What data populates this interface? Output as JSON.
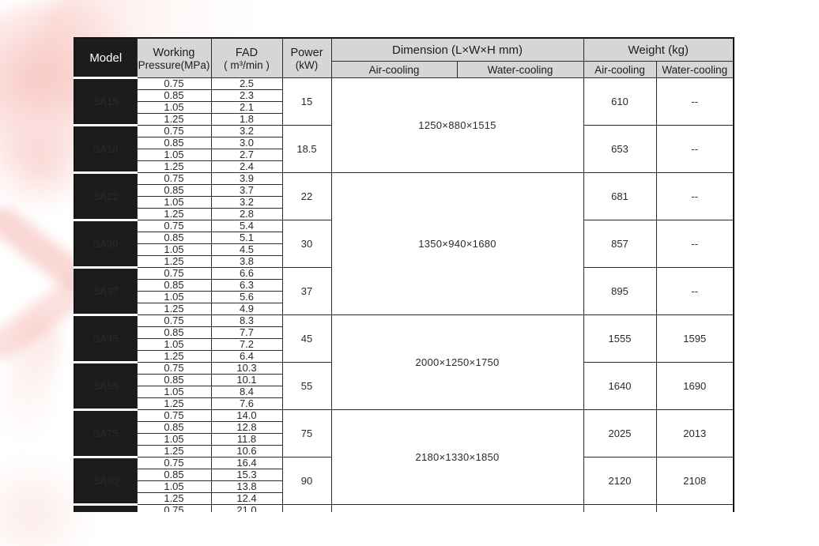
{
  "colors": {
    "header_bg": "#d6d6d6",
    "model_cell_bg": "#1c1c1c",
    "grid_line": "#2c2c2c",
    "pink_accent": "#f4b0a9",
    "page_bg": "#ffffff"
  },
  "table": {
    "header": {
      "model": "Model",
      "working_line1": "Working",
      "working_line2": "Pressure(MPa)",
      "fad_line1": "FAD",
      "fad_line2": "( m³/min )",
      "power_line1": "Power",
      "power_line2": "(kW)",
      "dimension": "Dimension  (L×W×H mm)",
      "weight": "Weight  (kg)",
      "air_cooling": "Air-cooling",
      "water_cooling": "Water-cooling"
    },
    "groups": [
      {
        "dimension": "1250×880×1515",
        "models": [
          {
            "name": "SA15",
            "power": "15",
            "weight_air": "610",
            "weight_water": "--",
            "rows": [
              [
                "0.75",
                "2.5"
              ],
              [
                "0.85",
                "2.3"
              ],
              [
                "1.05",
                "2.1"
              ],
              [
                "1.25",
                "1.8"
              ]
            ]
          },
          {
            "name": "SA18",
            "power": "18.5",
            "weight_air": "653",
            "weight_water": "--",
            "rows": [
              [
                "0.75",
                "3.2"
              ],
              [
                "0.85",
                "3.0"
              ],
              [
                "1.05",
                "2.7"
              ],
              [
                "1.25",
                "2.4"
              ]
            ]
          }
        ]
      },
      {
        "dimension": "1350×940×1680",
        "models": [
          {
            "name": "SA22",
            "power": "22",
            "weight_air": "681",
            "weight_water": "--",
            "rows": [
              [
                "0.75",
                "3.9"
              ],
              [
                "0.85",
                "3.7"
              ],
              [
                "1.05",
                "3.2"
              ],
              [
                "1.25",
                "2.8"
              ]
            ]
          },
          {
            "name": "SA30",
            "power": "30",
            "weight_air": "857",
            "weight_water": "--",
            "rows": [
              [
                "0.75",
                "5.4"
              ],
              [
                "0.85",
                "5.1"
              ],
              [
                "1.05",
                "4.5"
              ],
              [
                "1.25",
                "3.8"
              ]
            ]
          },
          {
            "name": "SA37",
            "power": "37",
            "weight_air": "895",
            "weight_water": "--",
            "rows": [
              [
                "0.75",
                "6.6"
              ],
              [
                "0.85",
                "6.3"
              ],
              [
                "1.05",
                "5.6"
              ],
              [
                "1.25",
                "4.9"
              ]
            ]
          }
        ]
      },
      {
        "dimension": "2000×1250×1750",
        "models": [
          {
            "name": "SA45",
            "power": "45",
            "weight_air": "1555",
            "weight_water": "1595",
            "rows": [
              [
                "0.75",
                "8.3"
              ],
              [
                "0.85",
                "7.7"
              ],
              [
                "1.05",
                "7.2"
              ],
              [
                "1.25",
                "6.4"
              ]
            ]
          },
          {
            "name": "SA55",
            "power": "55",
            "weight_air": "1640",
            "weight_water": "1690",
            "rows": [
              [
                "0.75",
                "10.3"
              ],
              [
                "0.85",
                "10.1"
              ],
              [
                "1.05",
                "8.4"
              ],
              [
                "1.25",
                "7.6"
              ]
            ]
          }
        ]
      },
      {
        "dimension": "2180×1330×1850",
        "models": [
          {
            "name": "SA75",
            "power": "75",
            "weight_air": "2025",
            "weight_water": "2013",
            "rows": [
              [
                "0.75",
                "14.0"
              ],
              [
                "0.85",
                "12.8"
              ],
              [
                "1.05",
                "11.8"
              ],
              [
                "1.25",
                "10.6"
              ]
            ]
          },
          {
            "name": "SA90",
            "power": "90",
            "weight_air": "2120",
            "weight_water": "2108",
            "rows": [
              [
                "0.75",
                "16.4"
              ],
              [
                "0.85",
                "15.3"
              ],
              [
                "1.05",
                "13.8"
              ],
              [
                "1.25",
                "12.4"
              ]
            ]
          }
        ]
      }
    ],
    "partial_row": {
      "pressure": "0.75",
      "fad": "21.0"
    }
  }
}
